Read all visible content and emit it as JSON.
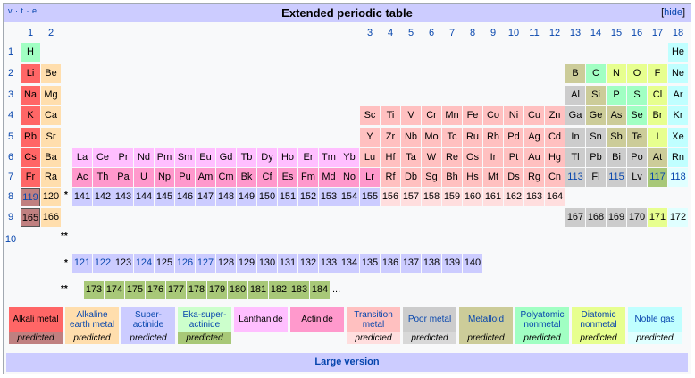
{
  "header": {
    "nav": "v · t · e",
    "title": "Extended periodic table",
    "hide": "hide"
  },
  "colors": {
    "alkali": "#ff6666",
    "alkaline": "#ffdead",
    "superact": "#ccccff",
    "ekasuper": "#ccffcc",
    "lanth": "#ffbfff",
    "actin": "#ff99cc",
    "trans": "#ffc0c0",
    "poor": "#cccccc",
    "metalloid": "#cccc99",
    "poly": "#a1ffc3",
    "diatomic": "#e7ff8f",
    "noble": "#c0ffff",
    "unknown": "#e8e8e8",
    "p_alkali": "#c08080",
    "p_super": "#ccd9ff",
    "p_eka": "#a8c878",
    "p_trans": "#ffdede",
    "p_poor": "#d8d8d8",
    "p_noble": "#e0ffff"
  },
  "groups": [
    "1",
    "2",
    "3",
    "4",
    "5",
    "6",
    "7",
    "8",
    "9",
    "10",
    "11",
    "12",
    "13",
    "14",
    "15",
    "16",
    "17",
    "18"
  ],
  "periods": [
    "1",
    "2",
    "3",
    "4",
    "5",
    "6",
    "7",
    "8",
    "9",
    "10"
  ],
  "rows": [
    [
      [
        "H",
        "poly",
        0
      ],
      [
        "He",
        "noble",
        17
      ]
    ],
    [
      [
        "Li",
        "alkali",
        0
      ],
      [
        "Be",
        "alkaline",
        1
      ],
      [
        "B",
        "metalloid",
        12
      ],
      [
        "C",
        "poly",
        13
      ],
      [
        "N",
        "diatomic",
        14
      ],
      [
        "O",
        "diatomic",
        15
      ],
      [
        "F",
        "diatomic",
        16
      ],
      [
        "Ne",
        "noble",
        17
      ]
    ],
    [
      [
        "Na",
        "alkali",
        0
      ],
      [
        "Mg",
        "alkaline",
        1
      ],
      [
        "Al",
        "poor",
        12
      ],
      [
        "Si",
        "metalloid",
        13
      ],
      [
        "P",
        "poly",
        14
      ],
      [
        "S",
        "poly",
        15
      ],
      [
        "Cl",
        "diatomic",
        16
      ],
      [
        "Ar",
        "noble",
        17
      ]
    ],
    [
      [
        "K",
        "alkali",
        0
      ],
      [
        "Ca",
        "alkaline",
        1
      ],
      [
        "Sc",
        "trans",
        2
      ],
      [
        "Ti",
        "trans",
        3
      ],
      [
        "V",
        "trans",
        4
      ],
      [
        "Cr",
        "trans",
        5
      ],
      [
        "Mn",
        "trans",
        6
      ],
      [
        "Fe",
        "trans",
        7
      ],
      [
        "Co",
        "trans",
        8
      ],
      [
        "Ni",
        "trans",
        9
      ],
      [
        "Cu",
        "trans",
        10
      ],
      [
        "Zn",
        "trans",
        11
      ],
      [
        "Ga",
        "poor",
        12
      ],
      [
        "Ge",
        "metalloid",
        13
      ],
      [
        "As",
        "metalloid",
        14
      ],
      [
        "Se",
        "poly",
        15
      ],
      [
        "Br",
        "diatomic",
        16
      ],
      [
        "Kr",
        "noble",
        17
      ]
    ],
    [
      [
        "Rb",
        "alkali",
        0
      ],
      [
        "Sr",
        "alkaline",
        1
      ],
      [
        "Y",
        "trans",
        2
      ],
      [
        "Zr",
        "trans",
        3
      ],
      [
        "Nb",
        "trans",
        4
      ],
      [
        "Mo",
        "trans",
        5
      ],
      [
        "Tc",
        "trans",
        6
      ],
      [
        "Ru",
        "trans",
        7
      ],
      [
        "Rh",
        "trans",
        8
      ],
      [
        "Pd",
        "trans",
        9
      ],
      [
        "Ag",
        "trans",
        10
      ],
      [
        "Cd",
        "trans",
        11
      ],
      [
        "In",
        "poor",
        12
      ],
      [
        "Sn",
        "poor",
        13
      ],
      [
        "Sb",
        "metalloid",
        14
      ],
      [
        "Te",
        "metalloid",
        15
      ],
      [
        "I",
        "diatomic",
        16
      ],
      [
        "Xe",
        "noble",
        17
      ]
    ],
    [
      [
        "Cs",
        "alkali",
        0
      ],
      [
        "Ba",
        "alkaline",
        1
      ],
      [
        "Lu",
        "trans",
        2
      ],
      [
        "Hf",
        "trans",
        3
      ],
      [
        "Ta",
        "trans",
        4
      ],
      [
        "W",
        "trans",
        5
      ],
      [
        "Re",
        "trans",
        6
      ],
      [
        "Os",
        "trans",
        7
      ],
      [
        "Ir",
        "trans",
        8
      ],
      [
        "Pt",
        "trans",
        9
      ],
      [
        "Au",
        "trans",
        10
      ],
      [
        "Hg",
        "trans",
        11
      ],
      [
        "Tl",
        "poor",
        12
      ],
      [
        "Pb",
        "poor",
        13
      ],
      [
        "Bi",
        "poor",
        14
      ],
      [
        "Po",
        "poor",
        15
      ],
      [
        "At",
        "metalloid",
        16
      ],
      [
        "Rn",
        "noble",
        17
      ]
    ],
    [
      [
        "Fr",
        "alkali",
        0
      ],
      [
        "Ra",
        "alkaline",
        1
      ],
      [
        "Lr",
        "actin",
        2
      ],
      [
        "Rf",
        "trans",
        3
      ],
      [
        "Db",
        "trans",
        4
      ],
      [
        "Sg",
        "trans",
        5
      ],
      [
        "Bh",
        "trans",
        6
      ],
      [
        "Hs",
        "trans",
        7
      ],
      [
        "Mt",
        "trans",
        8
      ],
      [
        "Ds",
        "trans",
        9
      ],
      [
        "Rg",
        "trans",
        10
      ],
      [
        "Cn",
        "trans",
        11
      ],
      [
        "113",
        "poor",
        12
      ],
      [
        "Fl",
        "poor",
        13
      ],
      [
        "115",
        "poor",
        14
      ],
      [
        "Lv",
        "poor",
        15
      ],
      [
        "117",
        "p_eka",
        16
      ],
      [
        "118",
        "p_noble",
        17
      ]
    ]
  ],
  "lanthanides": [
    "La",
    "Ce",
    "Pr",
    "Nd",
    "Pm",
    "Sm",
    "Eu",
    "Gd",
    "Tb",
    "Dy",
    "Ho",
    "Er",
    "Tm",
    "Yb"
  ],
  "actinides": [
    "Ac",
    "Th",
    "Pa",
    "U",
    "Np",
    "Pu",
    "Am",
    "Cm",
    "Bk",
    "Cf",
    "Es",
    "Fm",
    "Md",
    "No"
  ],
  "period8": {
    "start": [
      [
        "119",
        "p_alkali"
      ],
      [
        "120",
        "alkaline"
      ]
    ],
    "gblock": [
      "141",
      "142",
      "143",
      "144",
      "145",
      "146",
      "147",
      "148",
      "149",
      "150",
      "151",
      "152",
      "153",
      "154",
      "155"
    ],
    "dblock": [
      "156",
      "157",
      "158",
      "159",
      "160",
      "161",
      "162",
      "163",
      "164"
    ]
  },
  "period9": {
    "start": [
      [
        "165",
        "p_alkali"
      ],
      [
        "166",
        "alkaline"
      ]
    ],
    "pblock": [
      [
        "167",
        "poor"
      ],
      [
        "168",
        "poor"
      ],
      [
        "169",
        "poor"
      ],
      [
        "170",
        "poor"
      ],
      [
        "171",
        "diatomic"
      ],
      [
        "172",
        "p_noble"
      ]
    ]
  },
  "row_star": [
    "121",
    "122",
    "123",
    "124",
    "125",
    "126",
    "127",
    "128",
    "129",
    "130",
    "131",
    "132",
    "133",
    "134",
    "135",
    "136",
    "137",
    "138",
    "139",
    "140"
  ],
  "row_star_links": [
    "121",
    "122",
    "124",
    "126",
    "127"
  ],
  "row_dstar": [
    "173",
    "174",
    "175",
    "176",
    "177",
    "178",
    "179",
    "180",
    "181",
    "182",
    "183",
    "184"
  ],
  "markers": {
    "star": "*",
    "dstar": "**",
    "ellipsis": "..."
  },
  "legend": [
    {
      "label": "Alkali metal",
      "cls": "alkali",
      "pred": "predicted",
      "pcls": "p_alkali"
    },
    {
      "label": "Alkaline earth metal",
      "cls": "alkaline",
      "pred": "predicted",
      "pcls": "alkaline"
    },
    {
      "label": "Super-actinide",
      "cls": "superact",
      "pred": "predicted",
      "pcls": "superact"
    },
    {
      "label": "Eka-super-actinide",
      "cls": "ekasuper",
      "pred": "predicted",
      "pcls": "p_eka"
    },
    {
      "label": "Lanthanide",
      "cls": "lanth",
      "pred": "",
      "pcls": ""
    },
    {
      "label": "Actinide",
      "cls": "actin",
      "pred": "",
      "pcls": ""
    },
    {
      "label": "Transition metal",
      "cls": "trans",
      "pred": "predicted",
      "pcls": "p_trans"
    },
    {
      "label": "Poor metal",
      "cls": "poor",
      "pred": "predicted",
      "pcls": "p_poor"
    },
    {
      "label": "Metalloid",
      "cls": "metalloid",
      "pred": "predicted",
      "pcls": "metalloid"
    },
    {
      "label": "Polyatomic nonmetal",
      "cls": "poly",
      "pred": "predicted",
      "pcls": "poly"
    },
    {
      "label": "Diatomic nonmetal",
      "cls": "diatomic",
      "pred": "predicted",
      "pcls": "diatomic"
    },
    {
      "label": "Noble gas",
      "cls": "noble",
      "pred": "predicted",
      "pcls": "p_noble"
    }
  ],
  "footer": {
    "large": "Large version"
  }
}
